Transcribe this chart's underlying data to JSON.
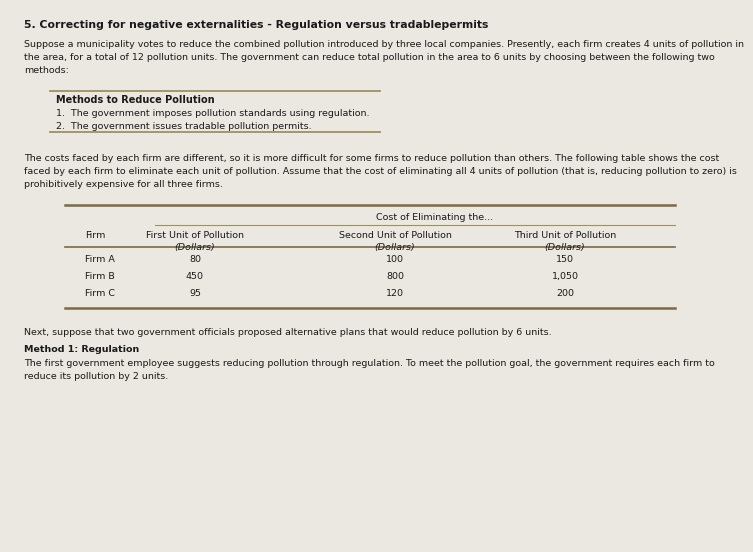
{
  "title": "5. Correcting for negative externalities - Regulation versus tradablepermits",
  "bg_color": "#ebe8e2",
  "text_color": "#1a1a1a",
  "para1_lines": [
    "Suppose a municipality votes to reduce the combined pollution introduced by three local companies. Presently, each firm creates 4 units of pollution in",
    "the area, for a total of 12 pollution units. The government can reduce total pollution in the area to 6 units by choosing between the following two",
    "methods:"
  ],
  "box_title": "Methods to Reduce Pollution",
  "box_item1": "1.  The government imposes pollution standards using regulation.",
  "box_item2": "2.  The government issues tradable pollution permits.",
  "para2_lines": [
    "The costs faced by each firm are different, so it is more difficult for some firms to reduce pollution than others. The following table shows the cost",
    "faced by each firm to eliminate each unit of pollution. Assume that the cost of eliminating all 4 units of pollution (that is, reducing pollution to zero) is",
    "prohibitively expensive for all three firms."
  ],
  "table_header_top": "Cost of Eliminating the...",
  "table_rows": [
    [
      "Firm A",
      "80",
      "100",
      "150"
    ],
    [
      "Firm B",
      "450",
      "800",
      "1,050"
    ],
    [
      "Firm C",
      "95",
      "120",
      "200"
    ]
  ],
  "para3": "Next, suppose that two government officials proposed alternative plans that would reduce pollution by 6 units.",
  "method1_title": "Method 1: Regulation",
  "method1_lines": [
    "The first government employee suggests reducing pollution through regulation. To meet the pollution goal, the government requires each firm to",
    "reduce its pollution by 2 units."
  ],
  "line_color": "#a09060",
  "line_color2": "#7a6a45"
}
